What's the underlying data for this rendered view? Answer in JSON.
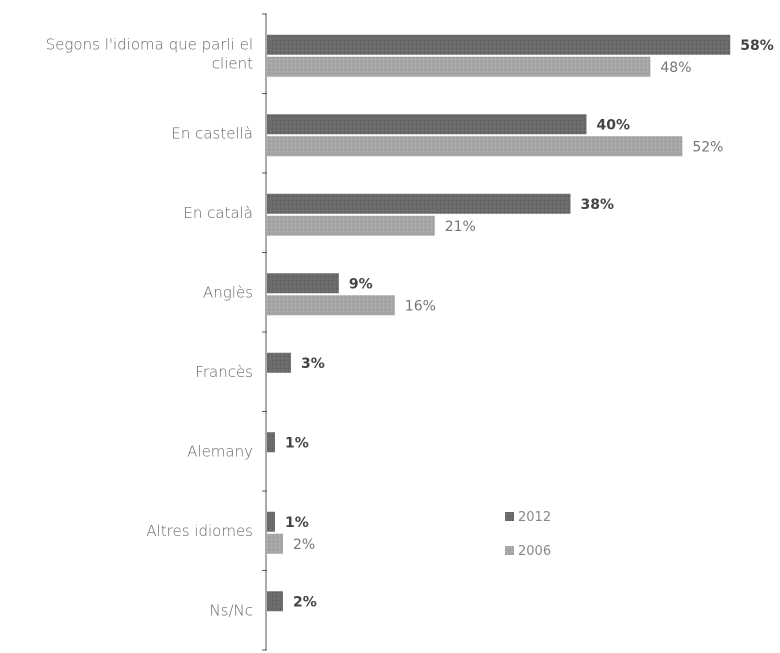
{
  "chart_data": {
    "type": "bar",
    "orientation": "horizontal",
    "categories": [
      [
        "Segons l'idioma que parli el",
        "client"
      ],
      [
        "En castellà"
      ],
      [
        "En català"
      ],
      [
        "Anglès"
      ],
      [
        "Francès"
      ],
      [
        "Alemany"
      ],
      [
        "Altres idiomes"
      ],
      [
        "Ns/Nc"
      ]
    ],
    "series": [
      {
        "name": "2012",
        "color": "#6b6b6b",
        "values": [
          58,
          40,
          38,
          9,
          3,
          1,
          1,
          2
        ],
        "labels": [
          "58%",
          "40%",
          "38%",
          "9%",
          "3%",
          "1%",
          "1%",
          "2%"
        ]
      },
      {
        "name": "2006",
        "color": "#a6a6a6",
        "values": [
          48,
          52,
          21,
          16,
          null,
          null,
          2,
          null
        ],
        "labels": [
          "48%",
          "52%",
          "21%",
          "16%",
          "",
          "",
          "2%",
          ""
        ]
      }
    ],
    "xlim": [
      0,
      60
    ],
    "grid": false,
    "legend_position": "lower-right"
  }
}
